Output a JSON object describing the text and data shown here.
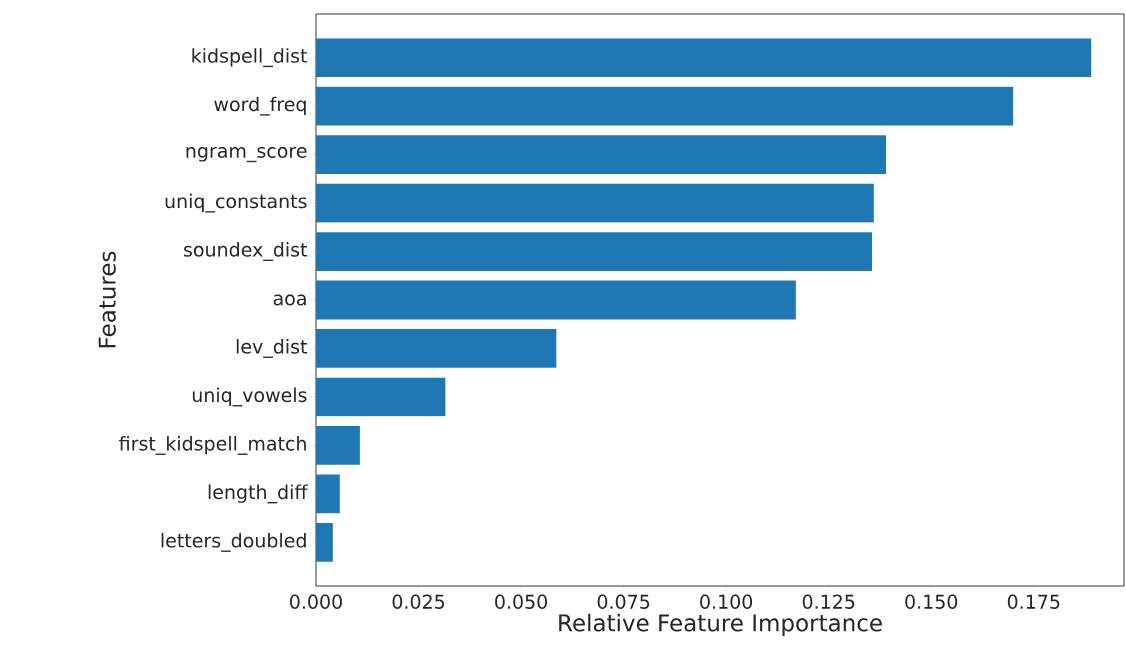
{
  "chart_data": {
    "type": "bar",
    "orientation": "horizontal",
    "xlabel": "Relative Feature Importance",
    "ylabel": "Features",
    "categories": [
      "kidspell_dist",
      "word_freq",
      "ngram_score",
      "uniq_constants",
      "soundex_dist",
      "aoa",
      "lev_dist",
      "uniq_vowels",
      "first_kidspell_match",
      "length_diff",
      "letters_doubled"
    ],
    "values": [
      0.189,
      0.17,
      0.139,
      0.136,
      0.1356,
      0.117,
      0.0586,
      0.0316,
      0.0107,
      0.0058,
      0.0041
    ],
    "color": "#1f77b4",
    "xlim": [
      0,
      0.197
    ],
    "xticks": [
      {
        "value": 0,
        "label": "0.000"
      },
      {
        "value": 0.025,
        "label": "0.025"
      },
      {
        "value": 0.05,
        "label": "0.050"
      },
      {
        "value": 0.075,
        "label": "0.075"
      },
      {
        "value": 0.1,
        "label": "0.100"
      },
      {
        "value": 0.125,
        "label": "0.125"
      },
      {
        "value": 0.15,
        "label": "0.150"
      },
      {
        "value": 0.175,
        "label": "0.175"
      }
    ]
  }
}
